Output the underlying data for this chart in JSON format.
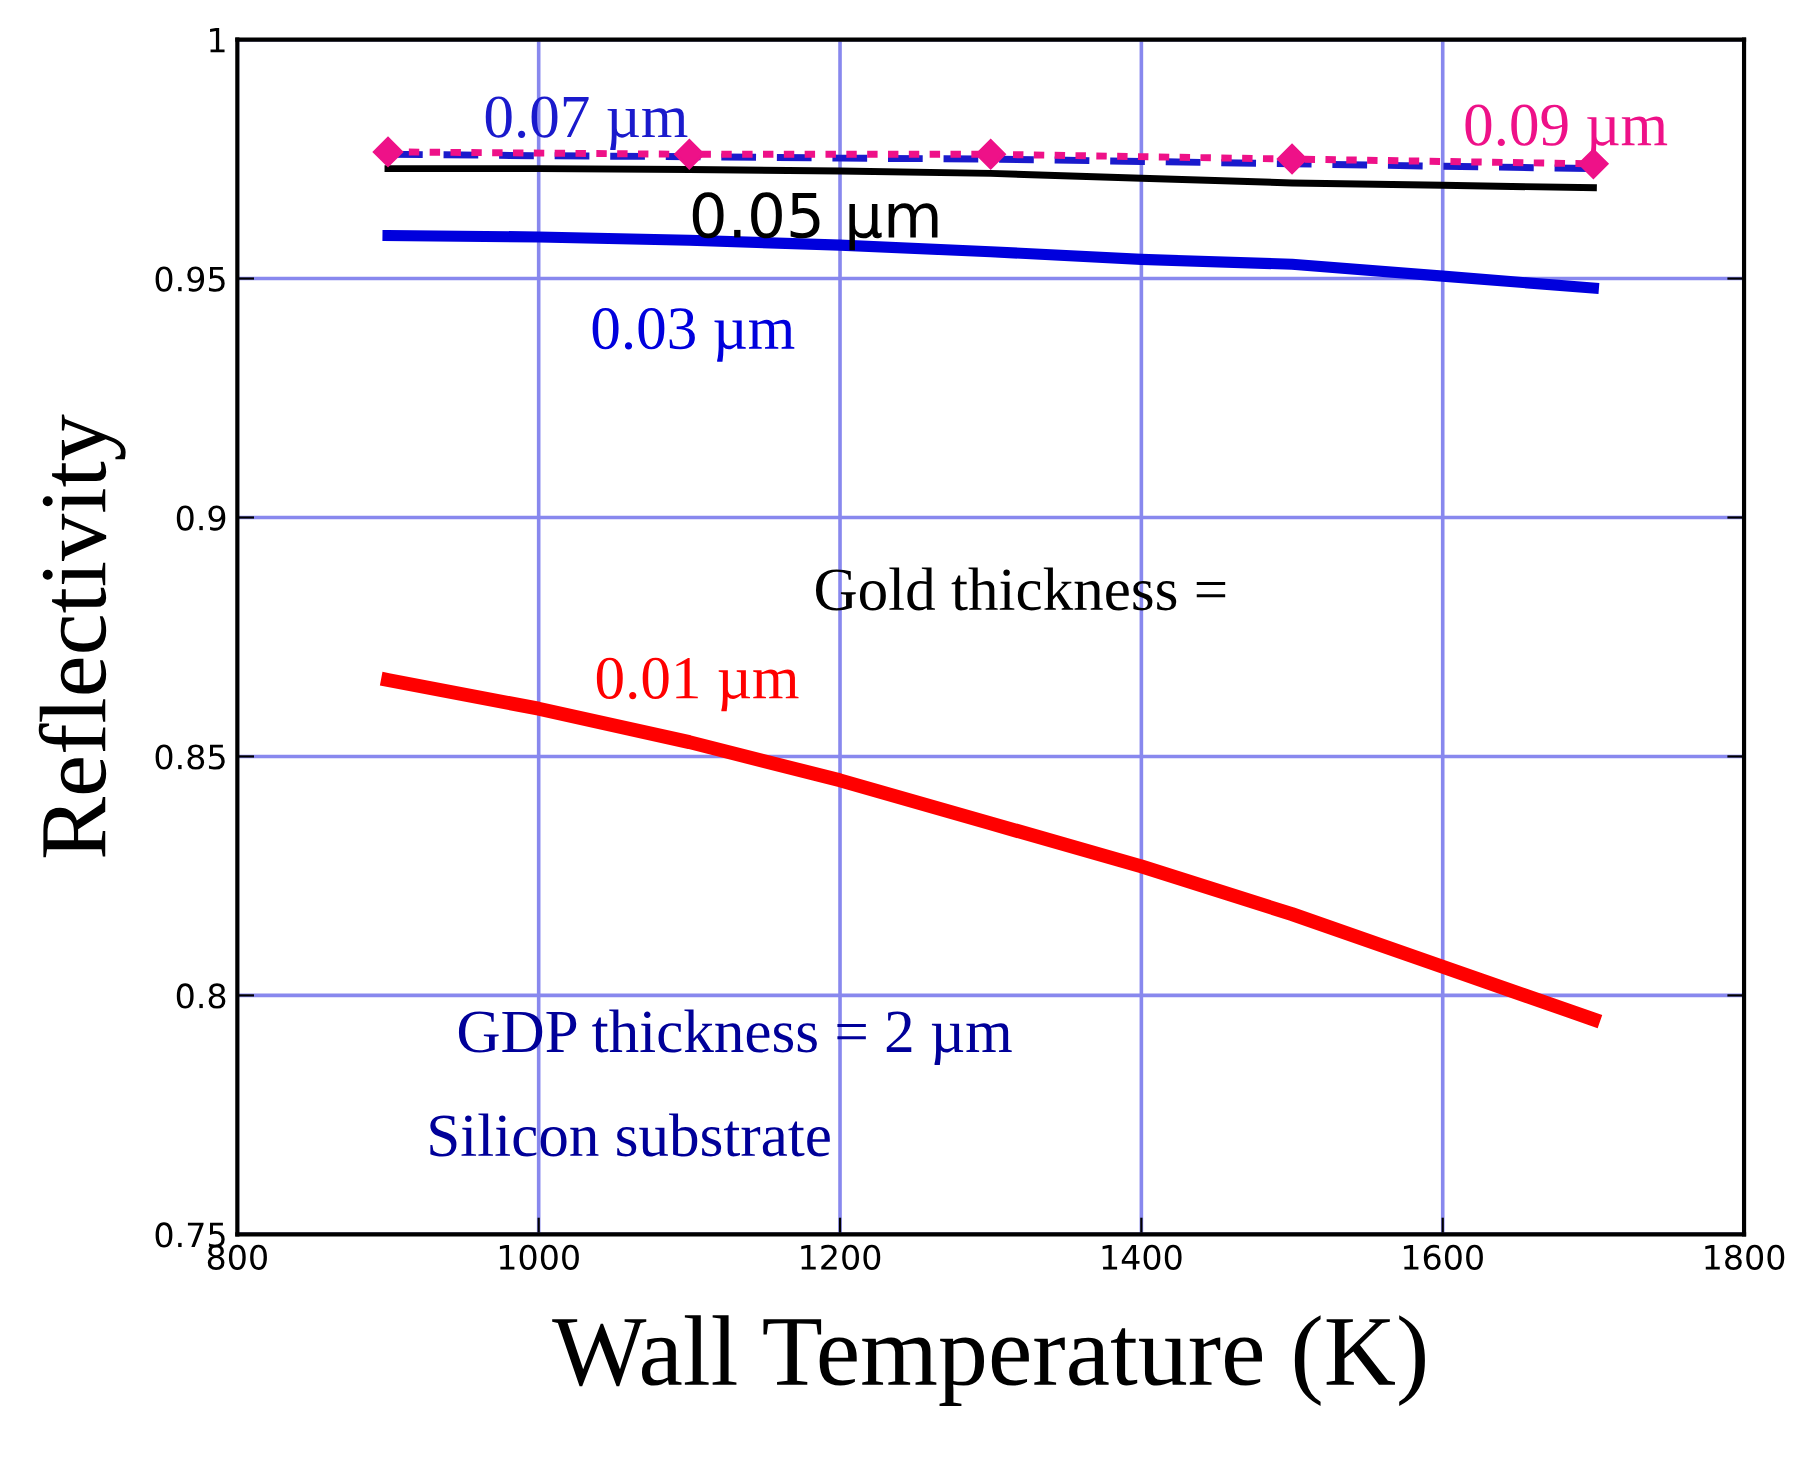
{
  "chart_data": {
    "type": "line",
    "xlabel": "Wall Temperature (K)",
    "ylabel": "Reflectivity",
    "x": [
      900,
      1000,
      1100,
      1200,
      1300,
      1400,
      1500,
      1600,
      1700
    ],
    "series": [
      {
        "name": "0.01 µm",
        "color": "#ff0000",
        "line_style": "solid",
        "values": [
          0.866,
          0.86,
          0.853,
          0.845,
          0.836,
          0.827,
          0.817,
          0.806,
          0.795
        ]
      },
      {
        "name": "0.03 µm",
        "color": "#0000dd",
        "line_style": "solid",
        "values": [
          0.959,
          0.9587,
          0.958,
          0.957,
          0.9556,
          0.954,
          0.953,
          0.9505,
          0.948
        ]
      },
      {
        "name": "0.05 µm",
        "color": "#000000",
        "line_style": "solid",
        "values": [
          0.973,
          0.973,
          0.9728,
          0.9725,
          0.972,
          0.971,
          0.97,
          0.9695,
          0.969
        ]
      },
      {
        "name": "0.07 µm",
        "color": "#1a1acc",
        "line_style": "dashed",
        "values": [
          0.976,
          0.9757,
          0.9755,
          0.9752,
          0.975,
          0.9745,
          0.974,
          0.9735,
          0.973
        ]
      },
      {
        "name": "0.09 µm",
        "color": "#ee1188",
        "line_style": "dotted",
        "marker": "diamond",
        "x": [
          900,
          1100,
          1300,
          1500,
          1700
        ],
        "values": [
          0.9765,
          0.976,
          0.976,
          0.975,
          0.974
        ]
      }
    ],
    "annotations": [
      "Gold thickness =",
      "GDP thickness = 2 µm",
      "Silicon substrate"
    ],
    "xlim": [
      800,
      1800
    ],
    "xticks": [
      800,
      1000,
      1200,
      1400,
      1600,
      1800
    ],
    "ylim": [
      0.75,
      1
    ],
    "yticks": [
      0.75,
      0.8,
      0.85,
      0.9,
      0.95,
      1
    ],
    "grid": true,
    "legend": false
  }
}
